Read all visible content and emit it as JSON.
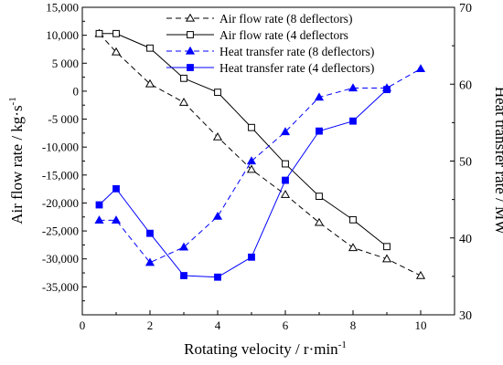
{
  "chart_data": {
    "type": "line",
    "title": "",
    "xlabel": "Rotating velocity / r·min",
    "xlabel_sup": "-1",
    "ylabel_left": "Air flow rate / kg·s",
    "ylabel_left_sup": "-1",
    "ylabel_right": "Heat transfer rate / MW",
    "xlim": [
      0,
      11
    ],
    "ylim_left": [
      -40000,
      15000
    ],
    "ylim_right": [
      30,
      70
    ],
    "x_ticks": [
      0,
      2,
      4,
      6,
      8,
      10
    ],
    "y_left_ticks": [
      -35000,
      -30000,
      -25000,
      -20000,
      -15000,
      -10000,
      -5000,
      0,
      5000,
      10000,
      15000
    ],
    "y_left_tick_labels": [
      "-35,000",
      "-30,000",
      "-25,000",
      "-20,000",
      "-15,000",
      "-10,000",
      "-5 000",
      "0",
      "5 000",
      "10,000",
      "15,000"
    ],
    "y_right_ticks": [
      30,
      40,
      50,
      60,
      70
    ],
    "grid": false,
    "legend_position": "top-center",
    "series": [
      {
        "name": "Air flow rate  (8 deflectors)",
        "axis": "left",
        "color": "#000000",
        "dash": "6,4",
        "marker": "triangle-open",
        "x": [
          0.5,
          1,
          2,
          3,
          4,
          5,
          6,
          7,
          8,
          9,
          10
        ],
        "y": [
          10300,
          7000,
          1300,
          -2000,
          -8200,
          -14000,
          -18500,
          -23500,
          -28000,
          -30000,
          -33000
        ]
      },
      {
        "name": "Air flow rate  (4 deflectors",
        "axis": "left",
        "color": "#000000",
        "dash": "",
        "marker": "square-open",
        "x": [
          0.5,
          1,
          2,
          3,
          4,
          5,
          6,
          7,
          8,
          9
        ],
        "y": [
          10300,
          10300,
          7700,
          2300,
          -200,
          -6500,
          -13000,
          -18800,
          -23000,
          -27800
        ]
      },
      {
        "name": "Heat transfer rate (8 deflectors)",
        "axis": "right",
        "color": "#0000ff",
        "dash": "6,4",
        "marker": "triangle-filled",
        "x": [
          0.5,
          1,
          2,
          3,
          4,
          5,
          6,
          7,
          8,
          9,
          10
        ],
        "y": [
          42.3,
          42.3,
          36.8,
          38.8,
          42.8,
          50.0,
          53.8,
          58.3,
          59.5,
          59.5,
          62.0
        ]
      },
      {
        "name": "Heat transfer rate  (4 deflectors)",
        "axis": "right",
        "color": "#0000ff",
        "dash": "",
        "marker": "square-filled",
        "x": [
          0.5,
          1,
          2,
          3,
          4,
          5,
          6,
          7,
          8,
          9
        ],
        "y": [
          44.3,
          46.4,
          40.6,
          35.1,
          34.9,
          37.5,
          47.5,
          53.9,
          55.2,
          59.3
        ]
      }
    ]
  }
}
